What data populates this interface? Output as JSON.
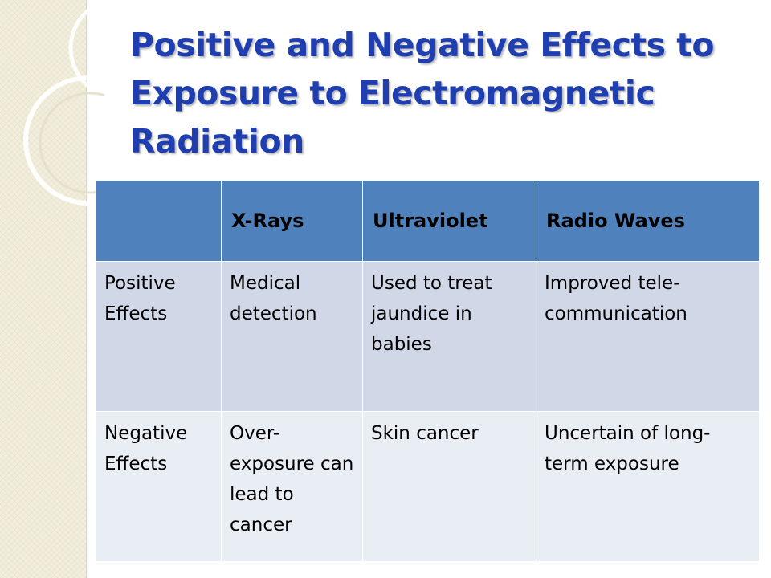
{
  "slide": {
    "title": "Positive and Negative Effects to Exposure to Electromagnetic Radiation"
  },
  "table": {
    "columns": [
      "",
      "X-Rays",
      "Ultraviolet",
      "Radio Waves"
    ],
    "rows": [
      {
        "label": "Positive Effects",
        "cells": [
          "Medical detection",
          "Used to treat jaundice in babies",
          "Improved tele-communication"
        ]
      },
      {
        "label": "Negative Effects",
        "cells": [
          "Over-exposure can lead to cancer",
          "Skin cancer",
          "Uncertain of long-term exposure"
        ]
      }
    ]
  },
  "colors": {
    "title": "#1f3fb0",
    "header_fill": "#4f81bd",
    "row_fill_1": "#d0d8e8",
    "row_fill_2": "#e9edf4",
    "left_band": "#f1eedd"
  }
}
